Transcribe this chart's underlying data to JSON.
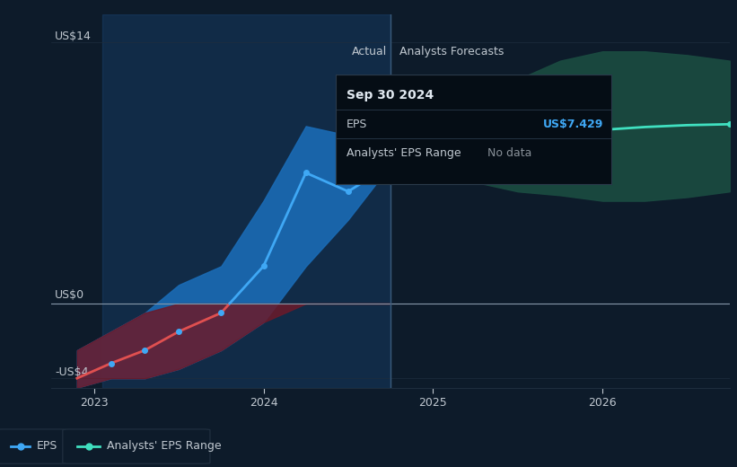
{
  "bg_color": "#0d1b2a",
  "plot_bg_color": "#0d1b2a",
  "ylabel_top": "US$14",
  "ylabel_zero": "US$0",
  "ylabel_neg": "-US$4",
  "xlim": [
    2022.75,
    2026.75
  ],
  "ylim": [
    -4.5,
    15.5
  ],
  "xticks": [
    2023,
    2024,
    2025,
    2026
  ],
  "divider_x": 2024.75,
  "actual_label": "Actual",
  "forecast_label": "Analysts Forecasts",
  "eps_value": "US$7.429",
  "tooltip_y": 7.429,
  "actual_eps_x": [
    2022.9,
    2023.1,
    2023.3,
    2023.5,
    2023.75,
    2024.0,
    2024.25,
    2024.5,
    2024.75
  ],
  "actual_eps_y": [
    -4.0,
    -3.2,
    -2.5,
    -1.5,
    -0.5,
    2.0,
    7.0,
    6.0,
    7.429
  ],
  "actual_band_upper_x": [
    2022.9,
    2023.1,
    2023.3,
    2023.5,
    2023.75,
    2024.0,
    2024.25,
    2024.5,
    2024.75
  ],
  "actual_band_upper_y": [
    -2.5,
    -1.5,
    -0.5,
    1.0,
    2.0,
    5.5,
    9.5,
    9.0,
    7.429
  ],
  "actual_band_lower_y": [
    -4.5,
    -4.0,
    -4.0,
    -3.5,
    -2.5,
    -1.0,
    2.0,
    4.5,
    7.429
  ],
  "forecast_eps_x": [
    2024.75,
    2025.0,
    2025.25,
    2025.5,
    2025.75,
    2026.0,
    2026.25,
    2026.5,
    2026.75
  ],
  "forecast_eps_y": [
    7.429,
    8.2,
    8.6,
    8.9,
    9.1,
    9.3,
    9.45,
    9.55,
    9.6
  ],
  "forecast_band_upper_y": [
    7.429,
    9.0,
    10.5,
    12.0,
    13.0,
    13.5,
    13.5,
    13.3,
    13.0
  ],
  "forecast_band_lower_y": [
    7.429,
    7.0,
    6.5,
    6.0,
    5.8,
    5.5,
    5.5,
    5.7,
    6.0
  ],
  "actual_band_color": "#1a6bb5",
  "actual_line_color": "#3fa8f5",
  "negative_band_color": "#6b1a2a",
  "forecast_band_color": "#1a4a40",
  "forecast_line_color": "#40e0c0",
  "actual_highlight_color": "#1b4a80",
  "grid_color": "#1e2d3d",
  "text_color": "#c0c8d0",
  "zero_line_color": "#8899aa",
  "tooltip_bg": "#050d15",
  "tooltip_border": "#2a3a4a",
  "tooltip_title_color": "#e0e8f0",
  "tooltip_eps_color": "#3fa8f5",
  "divider_line_color": "#3a5a7a",
  "red_line_color": "#e05050"
}
